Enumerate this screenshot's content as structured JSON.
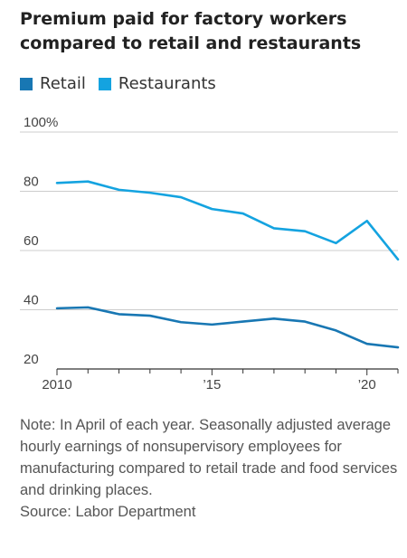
{
  "colors": {
    "retail": "#1877b3",
    "restaurants": "#14a3e0",
    "grid": "#cccccc",
    "axis": "#333333"
  },
  "chart_data": {
    "type": "line",
    "title": "Premium paid for factory workers compared to retail and restaurants",
    "xlabel": "",
    "ylabel": "",
    "x": [
      2010,
      2011,
      2012,
      2013,
      2014,
      2015,
      2016,
      2017,
      2018,
      2019,
      2020,
      2021
    ],
    "series": [
      {
        "name": "Retail",
        "values": [
          40.5,
          40.8,
          38.5,
          38.0,
          35.8,
          35.0,
          36.0,
          37.0,
          36.0,
          33.0,
          28.5,
          27.3
        ]
      },
      {
        "name": "Restaurants",
        "values": [
          82.8,
          83.3,
          80.5,
          79.5,
          78.0,
          74.0,
          72.5,
          67.5,
          66.5,
          62.5,
          70.0,
          57.0
        ]
      }
    ],
    "ylim": [
      20,
      100
    ],
    "xlim": [
      2010,
      2021
    ],
    "y_ticks": [
      {
        "value": 100,
        "label": "100%"
      },
      {
        "value": 80,
        "label": "80"
      },
      {
        "value": 60,
        "label": "60"
      },
      {
        "value": 40,
        "label": "40"
      },
      {
        "value": 20,
        "label": "20"
      }
    ],
    "x_ticks": [
      {
        "value": 2010,
        "label": "2010"
      },
      {
        "value": 2015,
        "label": "’15"
      },
      {
        "value": 2020,
        "label": "’20"
      }
    ],
    "grid": true,
    "legend": "top-left",
    "note": "Note: In April of each year. Seasonally adjusted average hourly earnings of nonsupervisory employees for manufacturing compared to retail trade and food services and drinking places.",
    "source": "Source: Labor Department"
  }
}
